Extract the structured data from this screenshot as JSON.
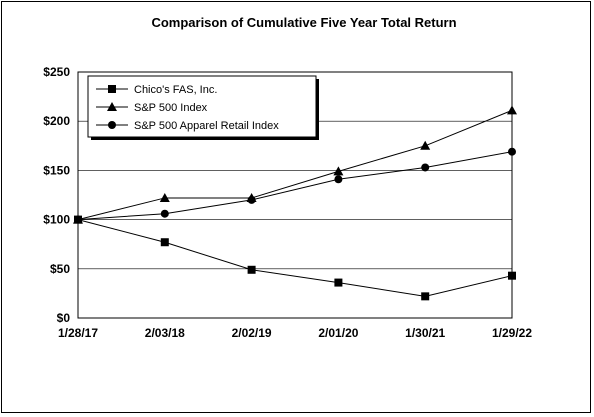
{
  "chart_data": {
    "type": "line",
    "title": "Comparison of Cumulative Five Year Total Return",
    "xlabel": "",
    "ylabel": "",
    "categories": [
      "1/28/17",
      "2/03/18",
      "2/02/19",
      "2/01/20",
      "1/30/21",
      "1/29/22"
    ],
    "ylim": [
      0,
      250
    ],
    "yticks": [
      0,
      50,
      100,
      150,
      200,
      250
    ],
    "ytick_labels": [
      "$0",
      "$50",
      "$100",
      "$150",
      "$200",
      "$250"
    ],
    "grid": true,
    "legend_position": "top-left",
    "series": [
      {
        "name": "Chico's FAS, Inc.",
        "marker": "square",
        "values": [
          100,
          77,
          49,
          36,
          22,
          43
        ]
      },
      {
        "name": "S&P 500 Index",
        "marker": "triangle",
        "values": [
          100,
          122,
          122,
          149,
          175,
          211
        ]
      },
      {
        "name": "S&P 500 Apparel Retail Index",
        "marker": "circle",
        "values": [
          100,
          106,
          120,
          141,
          153,
          169
        ]
      }
    ],
    "colors": {
      "line": "#000000",
      "grid": "#000000",
      "background": "#ffffff"
    }
  }
}
